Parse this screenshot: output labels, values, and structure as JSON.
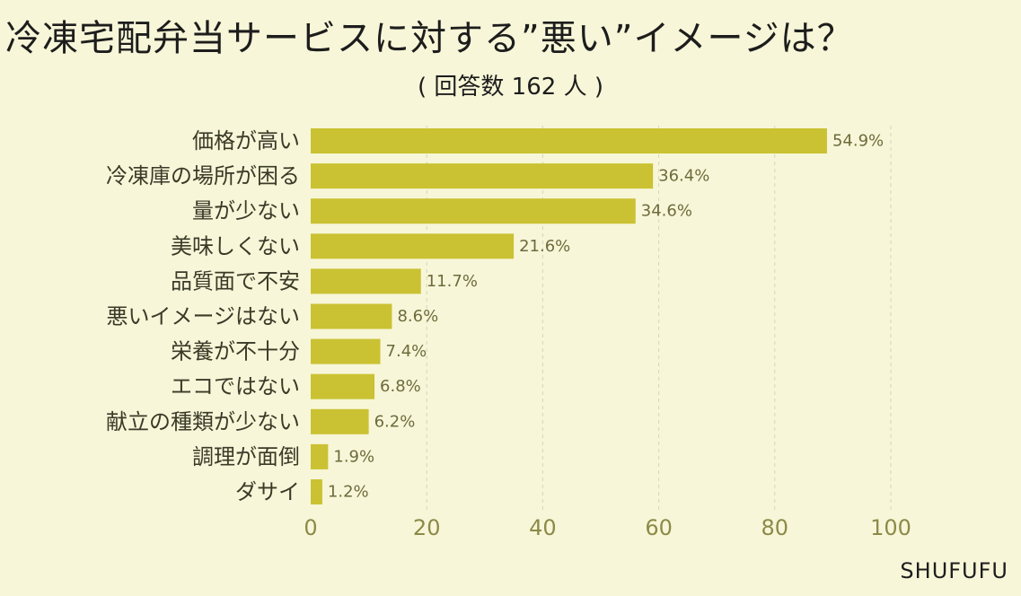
{
  "title": "冷凍宅配弁当サービスに対する”悪い”イメージは？",
  "subtitle": "( 回答数 162 人 )",
  "watermark": "SHUFUFU",
  "colors": {
    "bar": "#cac232",
    "background": "#f7f6d8",
    "grid": "#d6d4bc"
  },
  "chart_data": {
    "type": "bar",
    "orientation": "horizontal",
    "title": "冷凍宅配弁当サービスに対する”悪い”イメージは？",
    "subtitle": "( 回答数 162 人 )",
    "categories": [
      "価格が高い",
      "冷凍庫の場所が困る",
      "量が少ない",
      "美味しくない",
      "品質面で不安",
      "悪いイメージはない",
      "栄養が不十分",
      "エコではない",
      "献立の種類が少ない",
      "調理が面倒",
      "ダサイ"
    ],
    "values": [
      89,
      59,
      56,
      35,
      19,
      14,
      12,
      11,
      10,
      3,
      2
    ],
    "value_labels": [
      "54.9%",
      "36.4%",
      "34.6%",
      "21.6%",
      "11.7%",
      "8.6%",
      "7.4%",
      "6.8%",
      "6.2%",
      "1.9%",
      "1.2%"
    ],
    "xlim": [
      0,
      100
    ],
    "xticks": [
      0,
      20,
      40,
      60,
      80,
      100
    ],
    "xlabel": "",
    "ylabel": "",
    "grid": true
  }
}
